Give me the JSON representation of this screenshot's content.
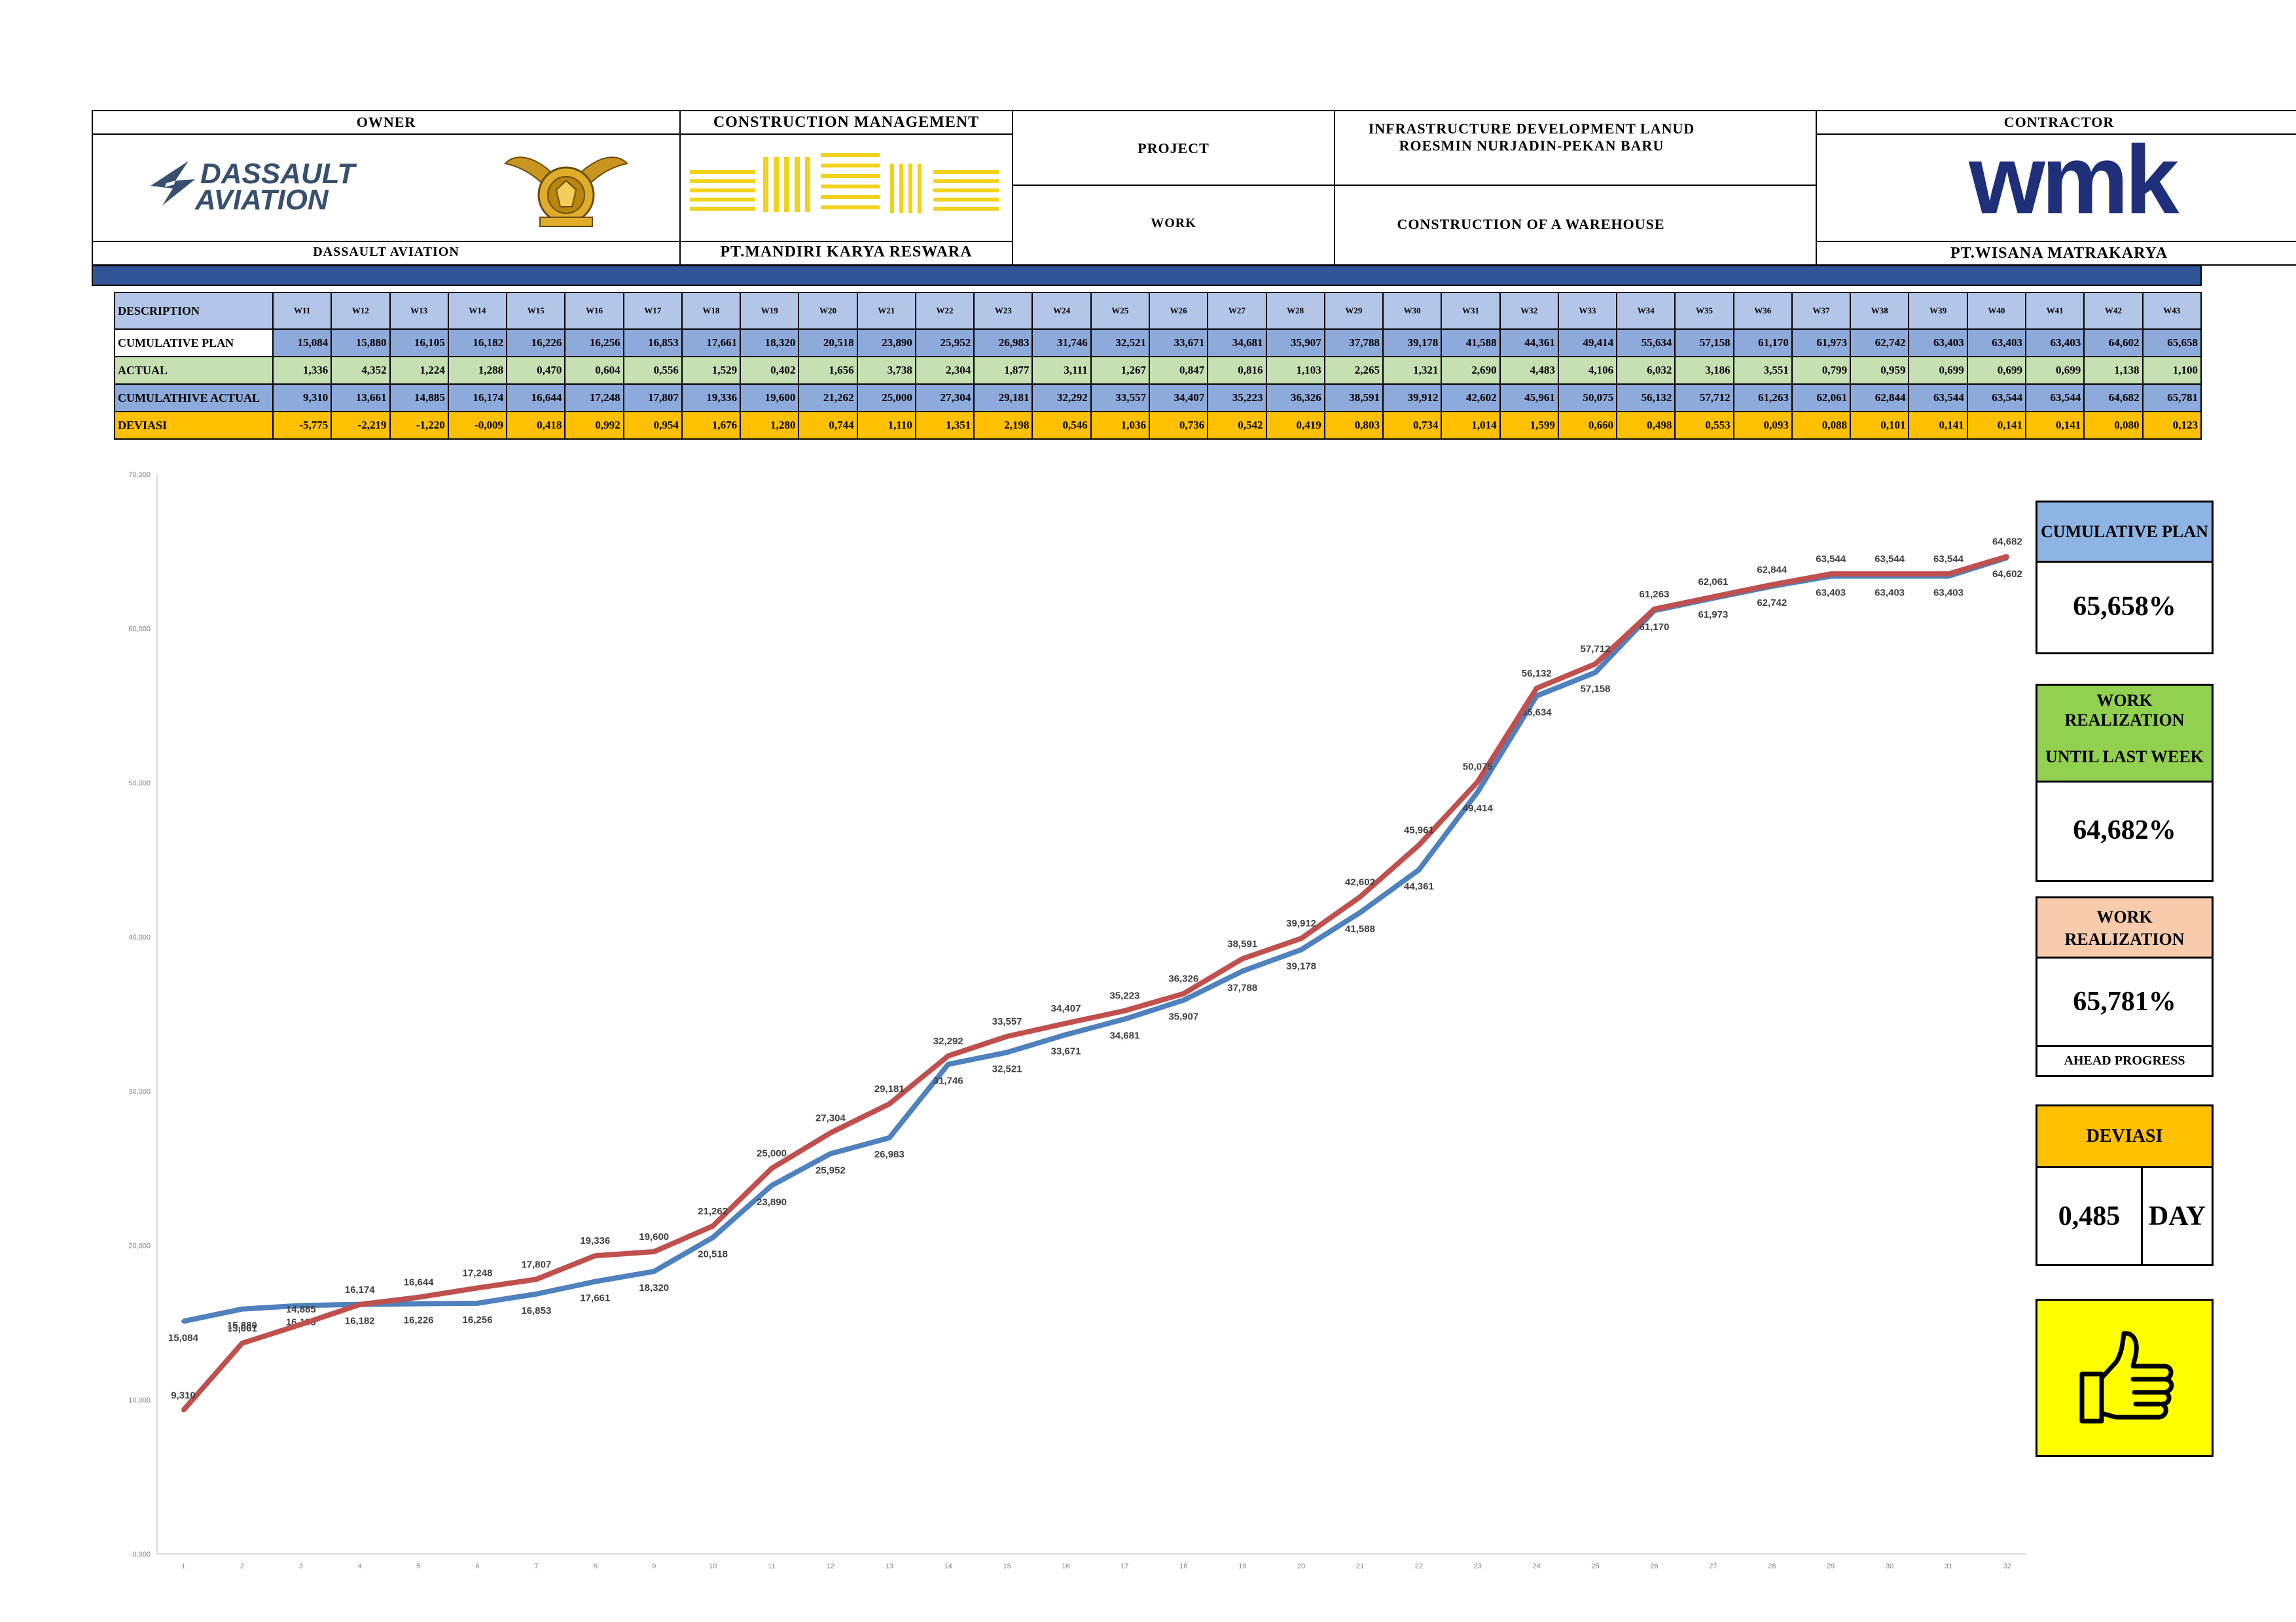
{
  "header": {
    "owner_label": "OWNER",
    "owner_name": "DASSAULT AVIATION",
    "owner_logo_text": [
      "DASSAULT",
      "AVIATION"
    ],
    "cm_label": "CONSTRUCTION MANAGEMENT",
    "cm_name": "PT.MANDIRI KARYA RESWARA",
    "project_label": "PROJECT",
    "project_value": "INFRASTRUCTURE DEVELOPMENT LANUD ROESMIN NURJADIN-PEKAN BARU",
    "work_label": "WORK",
    "work_value": "CONSTRUCTION OF A WAREHOUSE",
    "contractor_label": "CONTRACTOR",
    "contractor_name": "PT.WISANA MATRAKARYA",
    "contractor_logo_text": "wmk",
    "accent_color": "#2f5597",
    "cm_logo_color": "#f2d21b"
  },
  "table": {
    "description_label": "DESCRIPTION",
    "weeks": [
      "W11",
      "W12",
      "W13",
      "W14",
      "W15",
      "W16",
      "W17",
      "W18",
      "W19",
      "W20",
      "W21",
      "W22",
      "W23",
      "W24",
      "W25",
      "W26",
      "W27",
      "W28",
      "W29",
      "W30",
      "W31",
      "W32",
      "W33",
      "W34",
      "W35",
      "W36",
      "W37",
      "W38",
      "W39",
      "W40",
      "W41",
      "W42",
      "W43"
    ],
    "rows": [
      {
        "label": "CUMULATIVE PLAN",
        "values": [
          "15,084",
          "15,880",
          "16,105",
          "16,182",
          "16,226",
          "16,256",
          "16,853",
          "17,661",
          "18,320",
          "20,518",
          "23,890",
          "25,952",
          "26,983",
          "31,746",
          "32,521",
          "33,671",
          "34,681",
          "35,907",
          "37,788",
          "39,178",
          "41,588",
          "44,361",
          "49,414",
          "55,634",
          "57,158",
          "61,170",
          "61,973",
          "62,742",
          "63,403",
          "63,403",
          "63,403",
          "64,602",
          "65,658"
        ]
      },
      {
        "label": "ACTUAL",
        "values": [
          "1,336",
          "4,352",
          "1,224",
          "1,288",
          "0,470",
          "0,604",
          "0,556",
          "1,529",
          "0,402",
          "1,656",
          "3,738",
          "2,304",
          "1,877",
          "3,111",
          "1,267",
          "0,847",
          "0,816",
          "1,103",
          "2,265",
          "1,321",
          "2,690",
          "4,483",
          "4,106",
          "6,032",
          "3,186",
          "3,551",
          "0,799",
          "0,959",
          "0,699",
          "0,699",
          "0,699",
          "1,138",
          "1,100"
        ]
      },
      {
        "label": "CUMULATHIVE ACTUAL",
        "values": [
          "9,310",
          "13,661",
          "14,885",
          "16,174",
          "16,644",
          "17,248",
          "17,807",
          "19,336",
          "19,600",
          "21,262",
          "25,000",
          "27,304",
          "29,181",
          "32,292",
          "33,557",
          "34,407",
          "35,223",
          "36,326",
          "38,591",
          "39,912",
          "42,602",
          "45,961",
          "50,075",
          "56,132",
          "57,712",
          "61,263",
          "62,061",
          "62,844",
          "63,544",
          "63,544",
          "63,544",
          "64,682",
          "65,781"
        ]
      },
      {
        "label": "DEVIASI",
        "values": [
          "-5,775",
          "-2,219",
          "-1,220",
          "-0,009",
          "0,418",
          "0,992",
          "0,954",
          "1,676",
          "1,280",
          "0,744",
          "1,110",
          "1,351",
          "2,198",
          "0,546",
          "1,036",
          "0,736",
          "0,542",
          "0,419",
          "0,803",
          "0,734",
          "1,014",
          "1,599",
          "0,660",
          "0,498",
          "0,553",
          "0,093",
          "0,088",
          "0,101",
          "0,141",
          "0,141",
          "0,141",
          "0,080",
          "0,123"
        ]
      }
    ]
  },
  "chart_data": {
    "type": "line",
    "x": [
      1,
      2,
      3,
      4,
      5,
      6,
      7,
      8,
      9,
      10,
      11,
      12,
      13,
      14,
      15,
      16,
      17,
      18,
      19,
      20,
      21,
      22,
      23,
      24,
      25,
      26,
      27,
      28,
      29,
      30,
      31,
      32
    ],
    "ylim": [
      0,
      70
    ],
    "yticks": [
      "0,000",
      "10,000",
      "20,000",
      "30,000",
      "40,000",
      "50,000",
      "60,000",
      "70,000"
    ],
    "series": [
      {
        "color": "#4f81bd",
        "values": [
          15.084,
          15.88,
          16.105,
          16.182,
          16.226,
          16.256,
          16.853,
          17.661,
          18.32,
          20.518,
          23.89,
          25.952,
          26.983,
          31.746,
          32.521,
          33.671,
          34.681,
          35.907,
          37.788,
          39.178,
          41.588,
          44.361,
          49.414,
          55.634,
          57.158,
          61.17,
          61.973,
          62.742,
          63.403,
          63.403,
          63.403,
          64.602
        ],
        "labels": [
          "15,084",
          "15,880",
          "16,105",
          "16,182",
          "16,226",
          "16,256",
          "16,853",
          "17,661",
          "18,320",
          "20,518",
          "23,890",
          "25,952",
          "26,983",
          "31,746",
          "32,521",
          "33,671",
          "34,681",
          "35,907",
          "37,788",
          "39,178",
          "41,588",
          "44,361",
          "49,414",
          "55,634",
          "57,158",
          "61,170",
          "61,973",
          "62,742",
          "63,403",
          "63,403",
          "63,403",
          "64,602"
        ]
      },
      {
        "color": "#c0504d",
        "values": [
          9.31,
          13.661,
          14.885,
          16.174,
          16.644,
          17.248,
          17.807,
          19.336,
          19.6,
          21.262,
          25.0,
          27.304,
          29.181,
          32.292,
          33.557,
          34.407,
          35.223,
          36.326,
          38.591,
          39.912,
          42.602,
          45.961,
          50.075,
          56.132,
          57.712,
          61.263,
          62.061,
          62.844,
          63.544,
          63.544,
          63.544,
          64.682
        ],
        "labels": [
          "9,310",
          "13,661",
          "14,885",
          "16,174",
          "16,644",
          "17,248",
          "17,807",
          "19,336",
          "19,600",
          "21,262",
          "25,000",
          "27,304",
          "29,181",
          "32,292",
          "33,557",
          "34,407",
          "35,223",
          "36,326",
          "38,591",
          "39,912",
          "42,602",
          "45,961",
          "50,075",
          "56,132",
          "57,712",
          "61,263",
          "62,061",
          "62,844",
          "63,544",
          "63,544",
          "63,544",
          "64,682"
        ]
      }
    ]
  },
  "summary": {
    "plan_title": "CUMULATIVE PLAN",
    "plan_value": "65,658%",
    "last_week_title_1": "WORK",
    "last_week_title_2": "REALIZATION",
    "last_week_title_3": "UNTIL LAST WEEK",
    "last_week_value": "64,682%",
    "realization_title_1": "WORK",
    "realization_title_2": "REALIZATION",
    "realization_value": "65,781%",
    "realization_status": "AHEAD PROGRESS",
    "deviasi_title": "DEVIASI",
    "deviasi_value": "0,485",
    "deviasi_unit": "DAY",
    "thumb_icon": "thumbs-up-icon",
    "colors": {
      "plan": "#8eb4e3",
      "last_week": "#92d050",
      "realization": "#f8cbad",
      "deviasi": "#ffc000",
      "thumb_bg": "#ffff00"
    }
  }
}
